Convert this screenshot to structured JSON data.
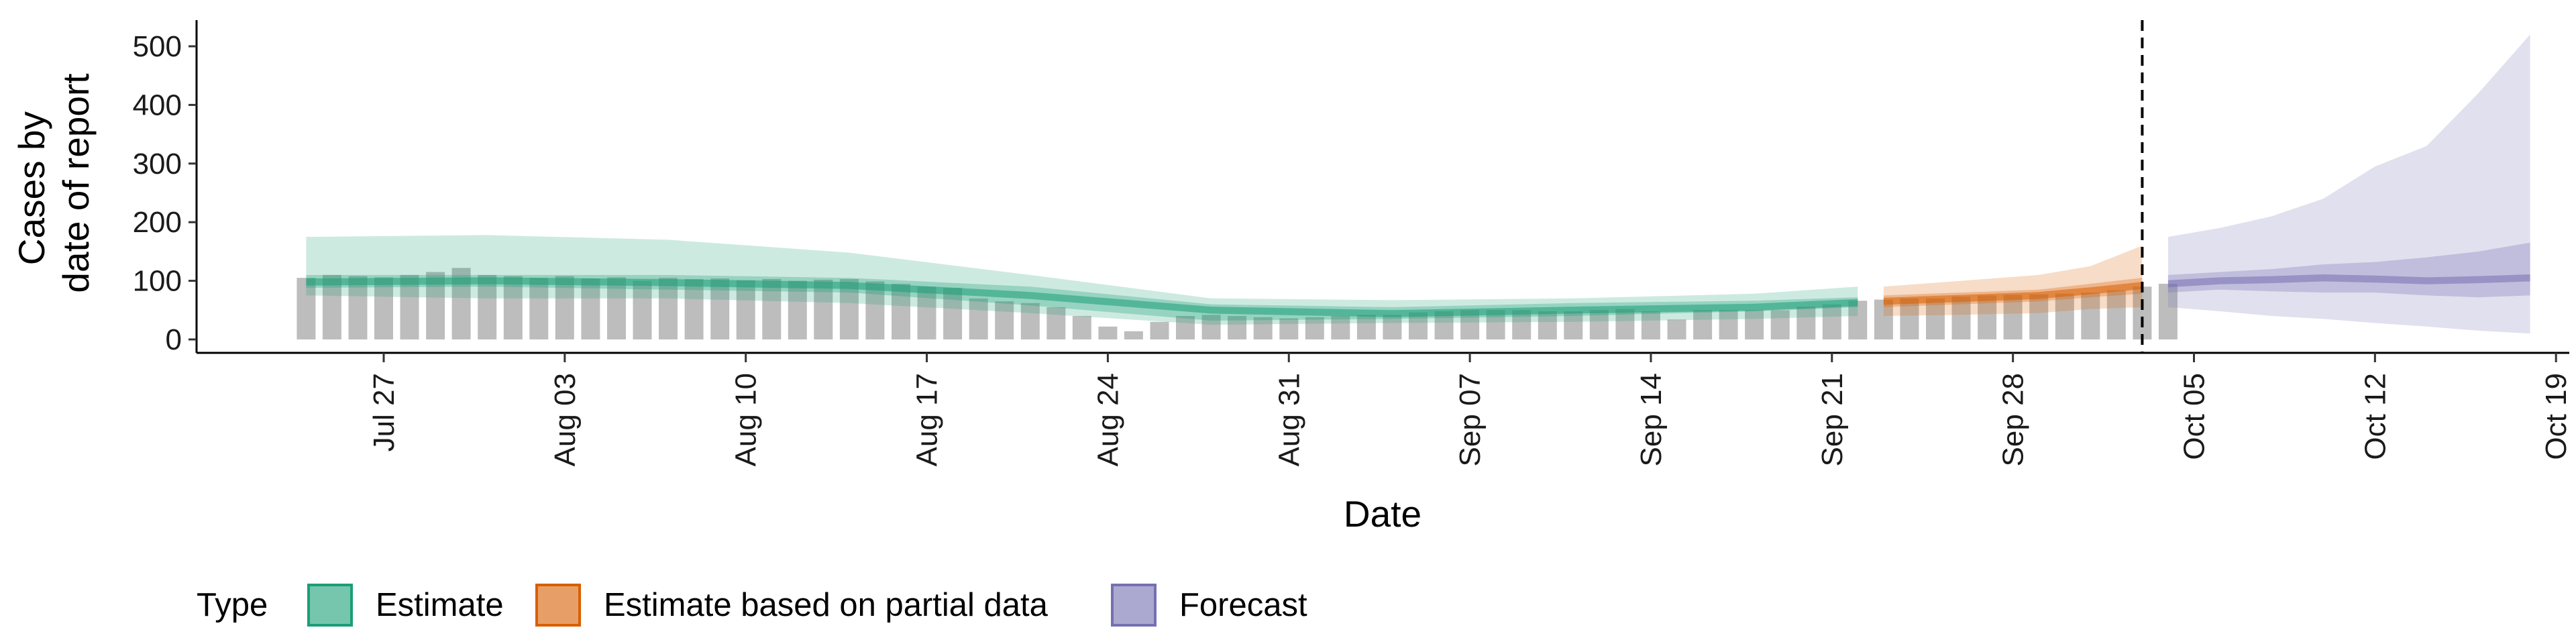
{
  "chart_data": {
    "type": "area",
    "xlabel": "Date",
    "ylabel": [
      "Cases by",
      "date of report"
    ],
    "ylim": [
      0,
      540
    ],
    "yticks": [
      0,
      100,
      200,
      300,
      400,
      500
    ],
    "xlim": [
      "2020-07-21",
      "2020-10-20"
    ],
    "xticks": [
      {
        "date": "2020-07-27",
        "label": "Jul 27"
      },
      {
        "date": "2020-08-03",
        "label": "Aug 03"
      },
      {
        "date": "2020-08-10",
        "label": "Aug 10"
      },
      {
        "date": "2020-08-17",
        "label": "Aug 17"
      },
      {
        "date": "2020-08-24",
        "label": "Aug 24"
      },
      {
        "date": "2020-08-31",
        "label": "Aug 31"
      },
      {
        "date": "2020-09-07",
        "label": "Sep 07"
      },
      {
        "date": "2020-09-14",
        "label": "Sep 14"
      },
      {
        "date": "2020-09-21",
        "label": "Sep 21"
      },
      {
        "date": "2020-09-28",
        "label": "Sep 28"
      },
      {
        "date": "2020-10-05",
        "label": "Oct 05"
      },
      {
        "date": "2020-10-12",
        "label": "Oct 12"
      },
      {
        "date": "2020-10-19",
        "label": "Oct 19"
      }
    ],
    "vline_date": "2020-10-03",
    "bars": {
      "start_date": "2020-07-24",
      "values": [
        105,
        110,
        108,
        106,
        110,
        115,
        122,
        110,
        108,
        105,
        108,
        104,
        106,
        100,
        105,
        103,
        104,
        101,
        103,
        100,
        102,
        103,
        99,
        95,
        90,
        88,
        70,
        65,
        62,
        55,
        40,
        22,
        14,
        30,
        40,
        42,
        40,
        38,
        36,
        38,
        40,
        42,
        42,
        46,
        48,
        50,
        50,
        50,
        48,
        48,
        50,
        52,
        48,
        34,
        50,
        50,
        50,
        50,
        56,
        60,
        66,
        68,
        70,
        70,
        73,
        75,
        76,
        77,
        78,
        80,
        84,
        90,
        95
      ]
    },
    "legend_title": "Type",
    "series": [
      {
        "name": "Estimate",
        "color": "#1b9e77",
        "x": [
          "2020-07-24",
          "2020-07-31",
          "2020-08-07",
          "2020-08-14",
          "2020-08-21",
          "2020-08-28",
          "2020-09-04",
          "2020-09-11",
          "2020-09-18",
          "2020-09-22"
        ],
        "median": [
          98,
          100,
          97,
          92,
          75,
          50,
          44,
          50,
          55,
          63
        ],
        "lower50": [
          88,
          90,
          85,
          80,
          58,
          32,
          35,
          40,
          48,
          55
        ],
        "upper50": [
          110,
          110,
          110,
          105,
          90,
          60,
          55,
          62,
          66,
          72
        ],
        "lower90": [
          75,
          70,
          70,
          62,
          45,
          25,
          28,
          30,
          35,
          40
        ],
        "upper90": [
          175,
          178,
          170,
          148,
          110,
          70,
          67,
          70,
          78,
          90
        ]
      },
      {
        "name": "Estimate based on partial data",
        "color": "#d95f02",
        "x": [
          "2020-09-23",
          "2020-09-26",
          "2020-09-29",
          "2020-10-01",
          "2020-10-03"
        ],
        "median": [
          65,
          70,
          75,
          83,
          92
        ],
        "lower50": [
          55,
          60,
          65,
          72,
          78
        ],
        "upper50": [
          75,
          80,
          85,
          95,
          105
        ],
        "lower90": [
          40,
          42,
          45,
          52,
          55
        ],
        "upper90": [
          90,
          100,
          110,
          125,
          160
        ]
      },
      {
        "name": "Forecast",
        "color": "#7570b3",
        "x": [
          "2020-10-04",
          "2020-10-06",
          "2020-10-08",
          "2020-10-10",
          "2020-10-12",
          "2020-10-14",
          "2020-10-16",
          "2020-10-18"
        ],
        "median": [
          95,
          100,
          102,
          105,
          103,
          100,
          102,
          105
        ],
        "lower50": [
          80,
          85,
          82,
          80,
          80,
          75,
          72,
          75
        ],
        "upper50": [
          110,
          115,
          120,
          128,
          132,
          140,
          150,
          165
        ],
        "lower90": [
          55,
          48,
          40,
          35,
          28,
          22,
          15,
          10
        ],
        "upper90": [
          175,
          190,
          210,
          240,
          295,
          330,
          420,
          520
        ]
      }
    ]
  }
}
